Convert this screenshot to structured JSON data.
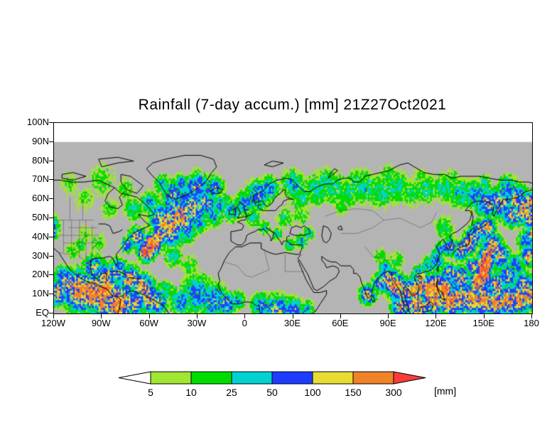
{
  "page": {
    "background": "#ffffff"
  },
  "chart_data": {
    "type": "heatmap",
    "title": "Rainfall (7-day accum.) [mm] 21Z27Oct2021",
    "variable": "7-day accumulated rainfall",
    "unit": "mm",
    "valid_time_label": "21Z27Oct2021",
    "x_axis": {
      "ticks": [
        "120W",
        "90W",
        "60W",
        "30W",
        "0",
        "30E",
        "60E",
        "90E",
        "120E",
        "150E",
        "180"
      ],
      "lon_min": -120,
      "lon_max": 180
    },
    "y_axis": {
      "ticks": [
        "100N",
        "90N",
        "80N",
        "70N",
        "60N",
        "50N",
        "40N",
        "30N",
        "20N",
        "10N",
        "EQ"
      ],
      "lat_min": 0,
      "lat_max": 100
    },
    "map_background_color": "#b4b4b4",
    "map_coastline_color": "#000000",
    "colorbar": {
      "levels": [
        5,
        10,
        25,
        50,
        100,
        150,
        300
      ],
      "segment_colors": [
        "#a0e632",
        "#00dc00",
        "#00d2d2",
        "#1e3cff",
        "#e6dc32",
        "#f08228"
      ],
      "below_min_color": "#ffffff",
      "above_max_color": "#fa3c3c",
      "unit_label": "[mm]"
    },
    "precip_centers_format": [
      "lon",
      "lat",
      "radius_deg",
      "peak_mm"
    ],
    "precip_centers": [
      [
        -122,
        47,
        4,
        60
      ],
      [
        -121,
        43,
        3,
        110
      ],
      [
        -100,
        41,
        6,
        8
      ],
      [
        -93,
        37,
        5,
        12
      ],
      [
        -108,
        33,
        4,
        18
      ],
      [
        -103,
        36,
        3,
        25
      ],
      [
        -112,
        16,
        6,
        100
      ],
      [
        -104,
        12,
        8,
        170
      ],
      [
        -96,
        11,
        7,
        210
      ],
      [
        -88,
        12,
        6,
        240
      ],
      [
        -118,
        11,
        5,
        120
      ],
      [
        -80,
        5,
        8,
        190
      ],
      [
        -90,
        6,
        6,
        150
      ],
      [
        -115,
        20,
        4,
        60
      ],
      [
        -95,
        24,
        5,
        90
      ],
      [
        -88,
        20,
        5,
        120
      ],
      [
        -80,
        22,
        5,
        100
      ],
      [
        -72,
        18,
        5,
        130
      ],
      [
        -64,
        14,
        5,
        150
      ],
      [
        -60,
        8,
        6,
        120
      ],
      [
        -70,
        6,
        6,
        100
      ],
      [
        -55,
        6,
        5,
        90
      ],
      [
        -62,
        33,
        4,
        250
      ],
      [
        -58,
        37,
        4,
        270
      ],
      [
        -54,
        41,
        3,
        200
      ],
      [
        -68,
        40,
        4,
        110
      ],
      [
        -74,
        36,
        3,
        90
      ],
      [
        -48,
        46,
        8,
        140
      ],
      [
        -40,
        51,
        8,
        130
      ],
      [
        -33,
        55,
        7,
        100
      ],
      [
        -25,
        58,
        6,
        80
      ],
      [
        -45,
        55,
        6,
        90
      ],
      [
        -52,
        50,
        6,
        110
      ],
      [
        -38,
        45,
        6,
        70
      ],
      [
        -30,
        48,
        5,
        50
      ],
      [
        -20,
        52,
        5,
        45
      ],
      [
        -45,
        62,
        5,
        80
      ],
      [
        -38,
        60,
        5,
        70
      ],
      [
        -15,
        57,
        5,
        40
      ],
      [
        -45,
        64,
        5,
        60
      ],
      [
        -30,
        66,
        6,
        90
      ],
      [
        -20,
        66,
        5,
        70
      ],
      [
        -52,
        68,
        4,
        40
      ],
      [
        -40,
        68,
        4,
        50
      ],
      [
        -45,
        30,
        5,
        28
      ],
      [
        -35,
        25,
        5,
        18
      ],
      [
        -30,
        10,
        8,
        60
      ],
      [
        -20,
        7,
        7,
        70
      ],
      [
        -40,
        6,
        6,
        50
      ],
      [
        -12,
        5,
        5,
        80
      ],
      [
        -50,
        12,
        4,
        40
      ],
      [
        -8,
        54,
        5,
        45
      ],
      [
        0,
        58,
        5,
        55
      ],
      [
        8,
        62,
        6,
        70
      ],
      [
        15,
        66,
        5,
        50
      ],
      [
        5,
        50,
        4,
        28
      ],
      [
        12,
        45,
        3,
        35
      ],
      [
        20,
        42,
        3,
        28
      ],
      [
        35,
        38,
        3,
        45
      ],
      [
        28,
        36,
        3,
        35
      ],
      [
        40,
        42,
        3,
        30
      ],
      [
        25,
        50,
        5,
        18
      ],
      [
        35,
        52,
        5,
        15
      ],
      [
        10,
        4,
        5,
        60
      ],
      [
        20,
        2,
        6,
        90
      ],
      [
        30,
        2,
        5,
        70
      ],
      [
        38,
        2,
        4,
        45
      ],
      [
        -5,
        7,
        4,
        40
      ],
      [
        35,
        62,
        7,
        22
      ],
      [
        45,
        65,
        7,
        28
      ],
      [
        55,
        66,
        7,
        28
      ],
      [
        65,
        64,
        7,
        22
      ],
      [
        75,
        66,
        7,
        32
      ],
      [
        85,
        64,
        7,
        28
      ],
      [
        95,
        66,
        7,
        28
      ],
      [
        105,
        64,
        6,
        22
      ],
      [
        115,
        65,
        6,
        28
      ],
      [
        125,
        66,
        6,
        32
      ],
      [
        135,
        63,
        6,
        40
      ],
      [
        145,
        62,
        6,
        60
      ],
      [
        152,
        58,
        6,
        90
      ],
      [
        160,
        58,
        6,
        110
      ],
      [
        170,
        60,
        6,
        100
      ],
      [
        178,
        58,
        5,
        110
      ],
      [
        30,
        68,
        6,
        40
      ],
      [
        50,
        70,
        5,
        28
      ],
      [
        70,
        70,
        5,
        22
      ],
      [
        90,
        72,
        5,
        18
      ],
      [
        110,
        72,
        4,
        14
      ],
      [
        130,
        71,
        4,
        18
      ],
      [
        150,
        68,
        4,
        28
      ],
      [
        165,
        66,
        5,
        60
      ],
      [
        60,
        57,
        5,
        15
      ],
      [
        -90,
        70,
        8,
        12
      ],
      [
        -110,
        68,
        6,
        10
      ],
      [
        -75,
        65,
        5,
        15
      ],
      [
        -60,
        58,
        5,
        40
      ],
      [
        -70,
        55,
        5,
        28
      ],
      [
        -85,
        55,
        5,
        14
      ],
      [
        -100,
        60,
        6,
        10
      ],
      [
        77,
        10,
        4,
        100
      ],
      [
        85,
        16,
        4,
        80
      ],
      [
        90,
        18,
        5,
        140
      ],
      [
        95,
        14,
        5,
        170
      ],
      [
        100,
        10,
        5,
        120
      ],
      [
        105,
        12,
        5,
        150
      ],
      [
        110,
        14,
        5,
        160
      ],
      [
        115,
        13,
        5,
        180
      ],
      [
        120,
        14,
        5,
        200
      ],
      [
        125,
        13,
        5,
        210
      ],
      [
        118,
        7,
        6,
        160
      ],
      [
        128,
        7,
        6,
        180
      ],
      [
        135,
        8,
        6,
        150
      ],
      [
        108,
        4,
        6,
        140
      ],
      [
        98,
        4,
        5,
        120
      ],
      [
        135,
        18,
        5,
        120
      ],
      [
        128,
        21,
        4,
        100
      ],
      [
        88,
        24,
        3,
        60
      ],
      [
        85,
        30,
        4,
        15
      ],
      [
        95,
        28,
        4,
        20
      ],
      [
        142,
        8,
        6,
        160
      ],
      [
        150,
        7,
        6,
        170
      ],
      [
        158,
        6,
        6,
        150
      ],
      [
        165,
        7,
        6,
        160
      ],
      [
        172,
        8,
        6,
        170
      ],
      [
        178,
        9,
        5,
        180
      ],
      [
        150,
        25,
        4,
        300
      ],
      [
        149,
        20,
        4,
        280
      ],
      [
        152,
        30,
        4,
        250
      ],
      [
        146,
        16,
        4,
        220
      ],
      [
        155,
        35,
        5,
        150
      ],
      [
        160,
        30,
        5,
        100
      ],
      [
        165,
        20,
        5,
        80
      ],
      [
        158,
        15,
        5,
        120
      ],
      [
        170,
        25,
        5,
        60
      ],
      [
        175,
        15,
        5,
        100
      ],
      [
        178,
        30,
        4,
        120
      ],
      [
        143,
        25,
        3,
        150
      ],
      [
        128,
        35,
        4,
        80
      ],
      [
        135,
        33,
        4,
        100
      ],
      [
        140,
        36,
        4,
        150
      ],
      [
        143,
        40,
        4,
        120
      ],
      [
        147,
        44,
        4,
        100
      ],
      [
        152,
        45,
        4,
        130
      ],
      [
        120,
        28,
        4,
        60
      ],
      [
        115,
        25,
        4,
        40
      ],
      [
        110,
        19,
        4,
        120
      ],
      [
        122,
        33,
        3,
        70
      ],
      [
        125,
        45,
        5,
        25
      ],
      [
        175,
        55,
        6,
        130
      ],
      [
        168,
        52,
        5,
        100
      ],
      [
        180,
        50,
        5,
        110
      ],
      [
        180,
        42,
        4,
        90
      ],
      [
        176,
        38,
        4,
        70
      ]
    ]
  }
}
